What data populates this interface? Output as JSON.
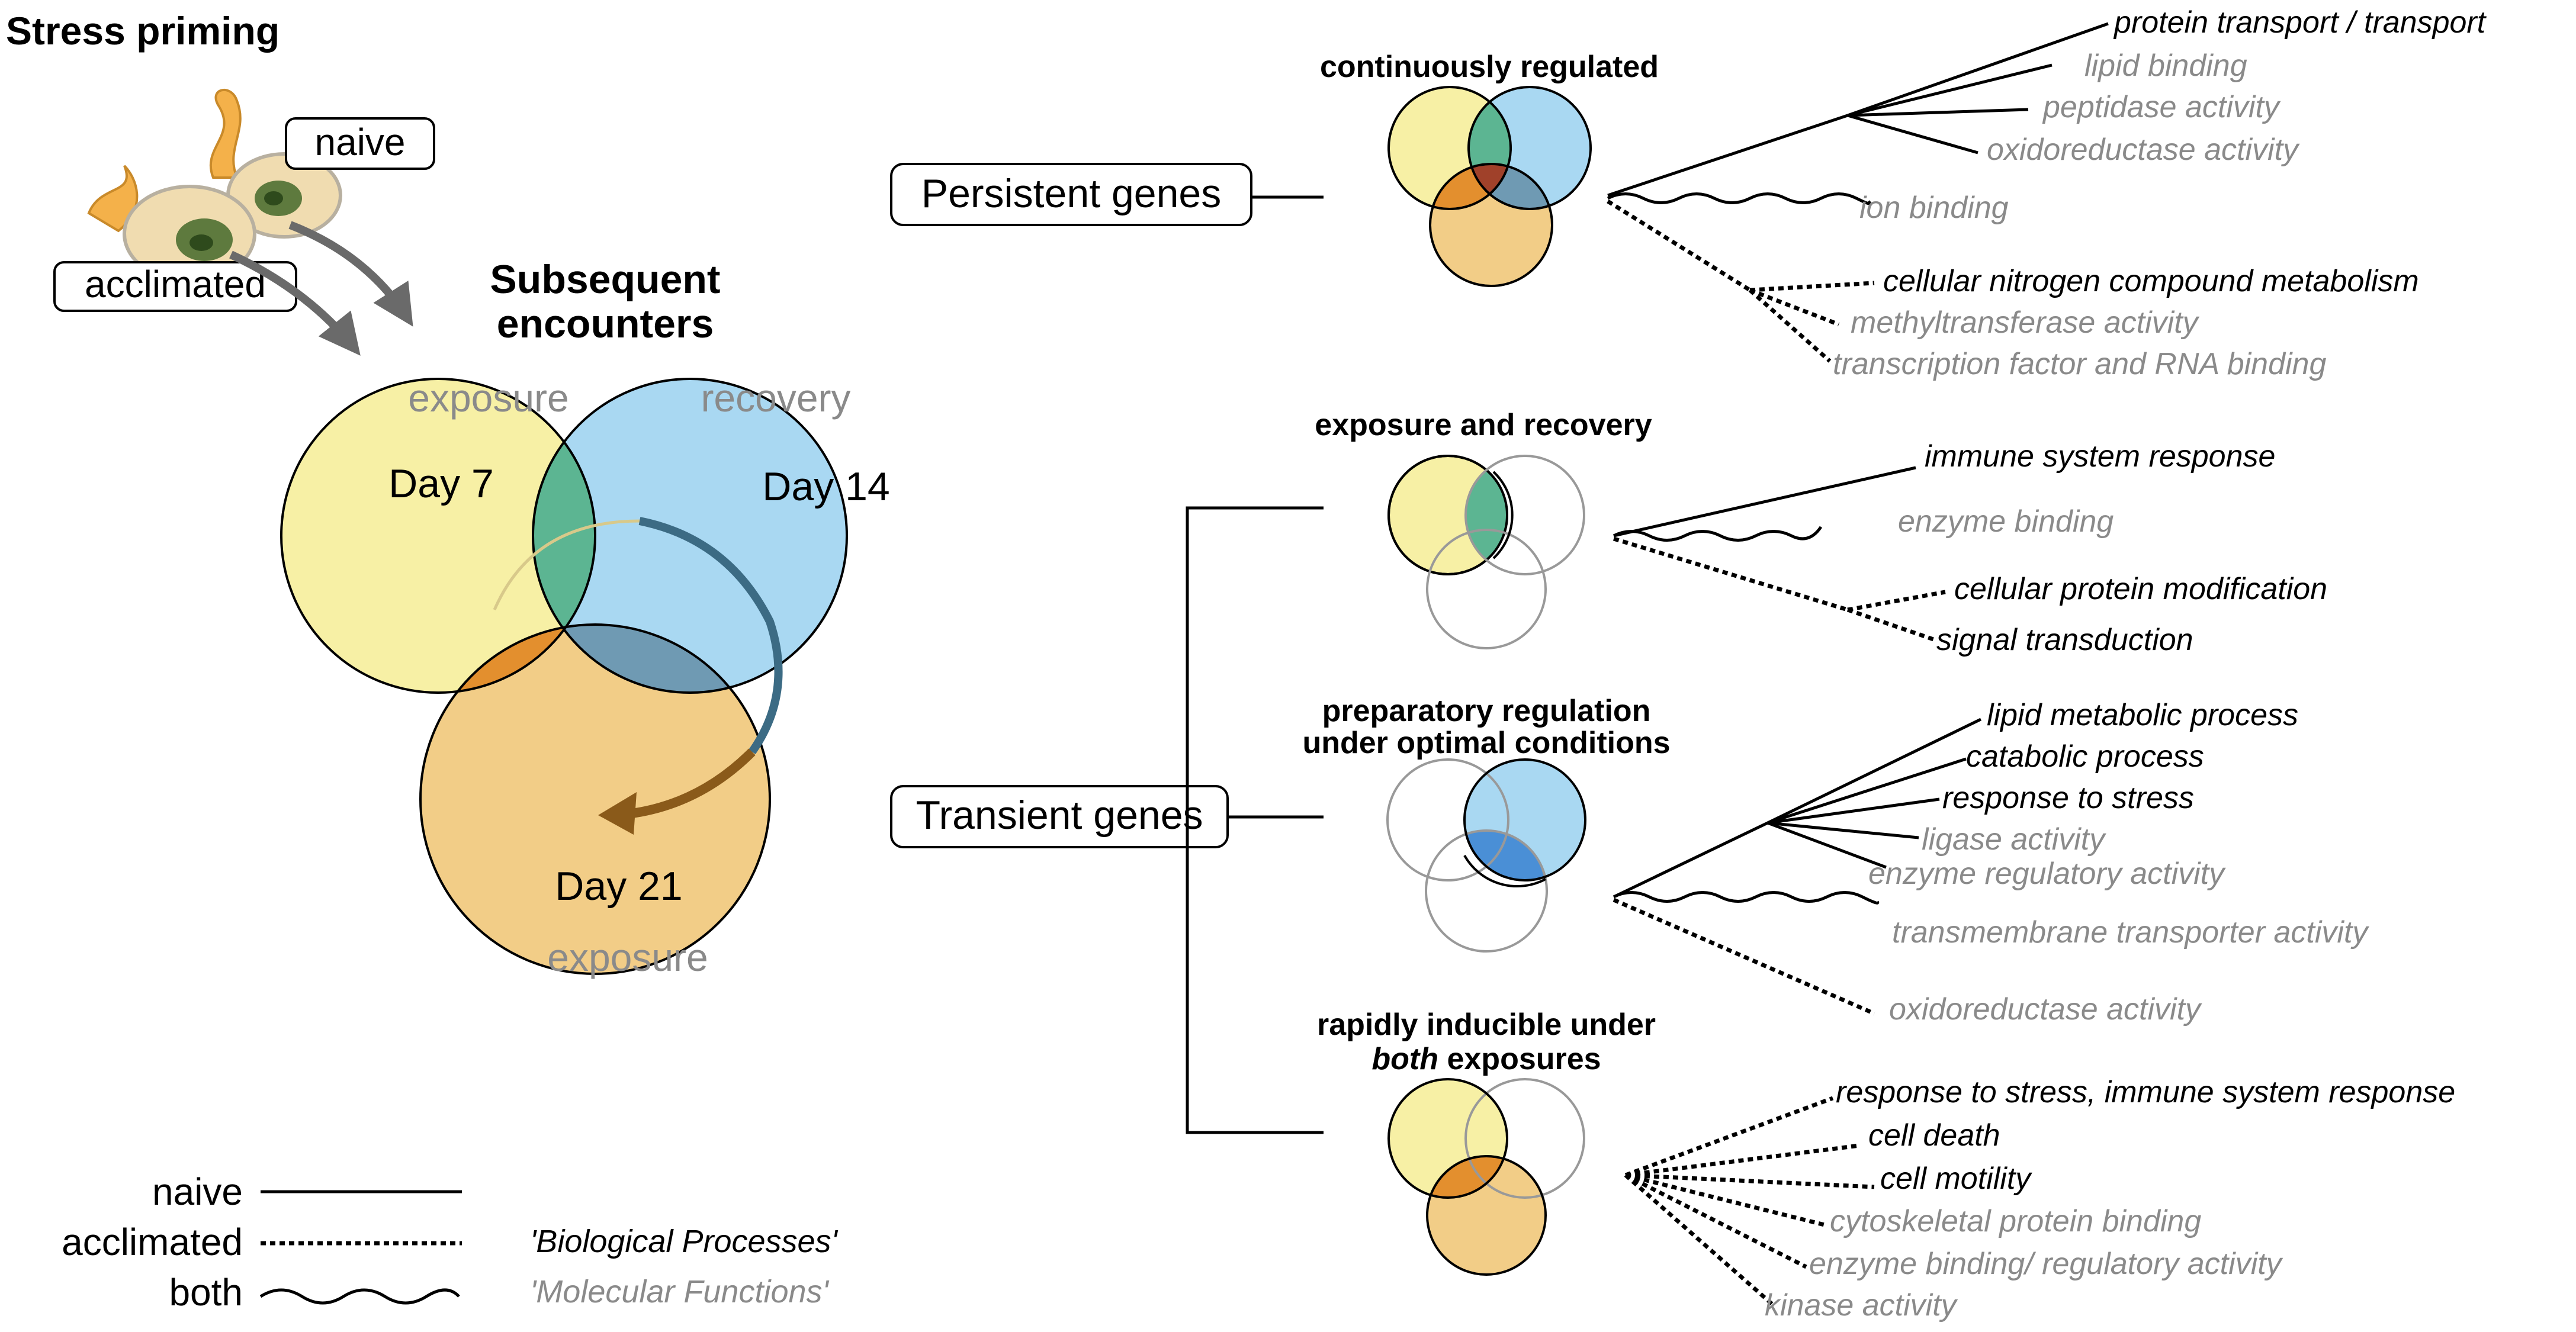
{
  "title": "Stress priming",
  "groups": {
    "naive": "naive",
    "acclimated": "acclimated"
  },
  "subsequent": {
    "line1": "Subsequent",
    "line2": "encounters"
  },
  "venn": {
    "exposure_top": "exposure",
    "recovery": "recovery",
    "day7": "Day 7",
    "day14": "Day 14",
    "day21": "Day 21",
    "exposure_bottom": "exposure"
  },
  "colors": {
    "yellow": "#f7f0a5",
    "blue": "#a9d8f2",
    "orange_light": "#f2cd87",
    "green": "#5cb592",
    "orange": "#e38f2e",
    "red": "#a0412a",
    "steel": "#6f9ab3",
    "dark_blue": "#4a8fd6",
    "arrow_teal": "#3c6b84",
    "arrow_brown": "#8a5a1a"
  },
  "persistent": {
    "label": "Persistent genes",
    "title": "continuously regulated",
    "terms": [
      {
        "text": "protein transport / transport",
        "type": "bp"
      },
      {
        "text": "lipid binding",
        "type": "mf"
      },
      {
        "text": "peptidase activity",
        "type": "mf"
      },
      {
        "text": "oxidoreductase activity",
        "type": "mf"
      },
      {
        "text": "ion binding",
        "type": "mf"
      },
      {
        "text": "cellular nitrogen compound metabolism",
        "type": "bp"
      },
      {
        "text": "methyltransferase activity",
        "type": "mf"
      },
      {
        "text": "transcription factor and RNA binding",
        "type": "mf"
      }
    ]
  },
  "transient": {
    "label": "Transient genes",
    "sub1": {
      "title": "exposure and recovery",
      "terms": [
        {
          "text": "immune system response",
          "type": "bp"
        },
        {
          "text": "enzyme binding",
          "type": "mf"
        },
        {
          "text": "cellular protein modification",
          "type": "bp"
        },
        {
          "text": "signal transduction",
          "type": "bp"
        }
      ]
    },
    "sub2": {
      "title_line1": "preparatory regulation",
      "title_line2": "under optimal conditions",
      "terms": [
        {
          "text": "lipid metabolic process",
          "type": "bp"
        },
        {
          "text": "catabolic process",
          "type": "bp"
        },
        {
          "text": "response to stress",
          "type": "bp"
        },
        {
          "text": "ligase activity",
          "type": "mf"
        },
        {
          "text": "enzyme regulatory activity",
          "type": "mf"
        },
        {
          "text": "transmembrane transporter activity",
          "type": "mf"
        },
        {
          "text": "oxidoreductase activity",
          "type": "mf"
        }
      ]
    },
    "sub3": {
      "title_line1": "rapidly inducible under",
      "title_line2_em": "both",
      "title_line2_rest": " exposures",
      "terms": [
        {
          "text": "response to stress, immune system response",
          "type": "bp"
        },
        {
          "text": "cell death",
          "type": "bp"
        },
        {
          "text": "cell motility",
          "type": "bp"
        },
        {
          "text": "cytoskeletal protein binding",
          "type": "mf"
        },
        {
          "text": "enzyme binding/ regulatory activity",
          "type": "mf"
        },
        {
          "text": "kinase activity",
          "type": "mf"
        }
      ]
    }
  },
  "legend": {
    "naive": "naive",
    "acclimated": "acclimated",
    "both": "both",
    "bp": "'Biological Processes'",
    "mf": "'Molecular Functions'"
  }
}
